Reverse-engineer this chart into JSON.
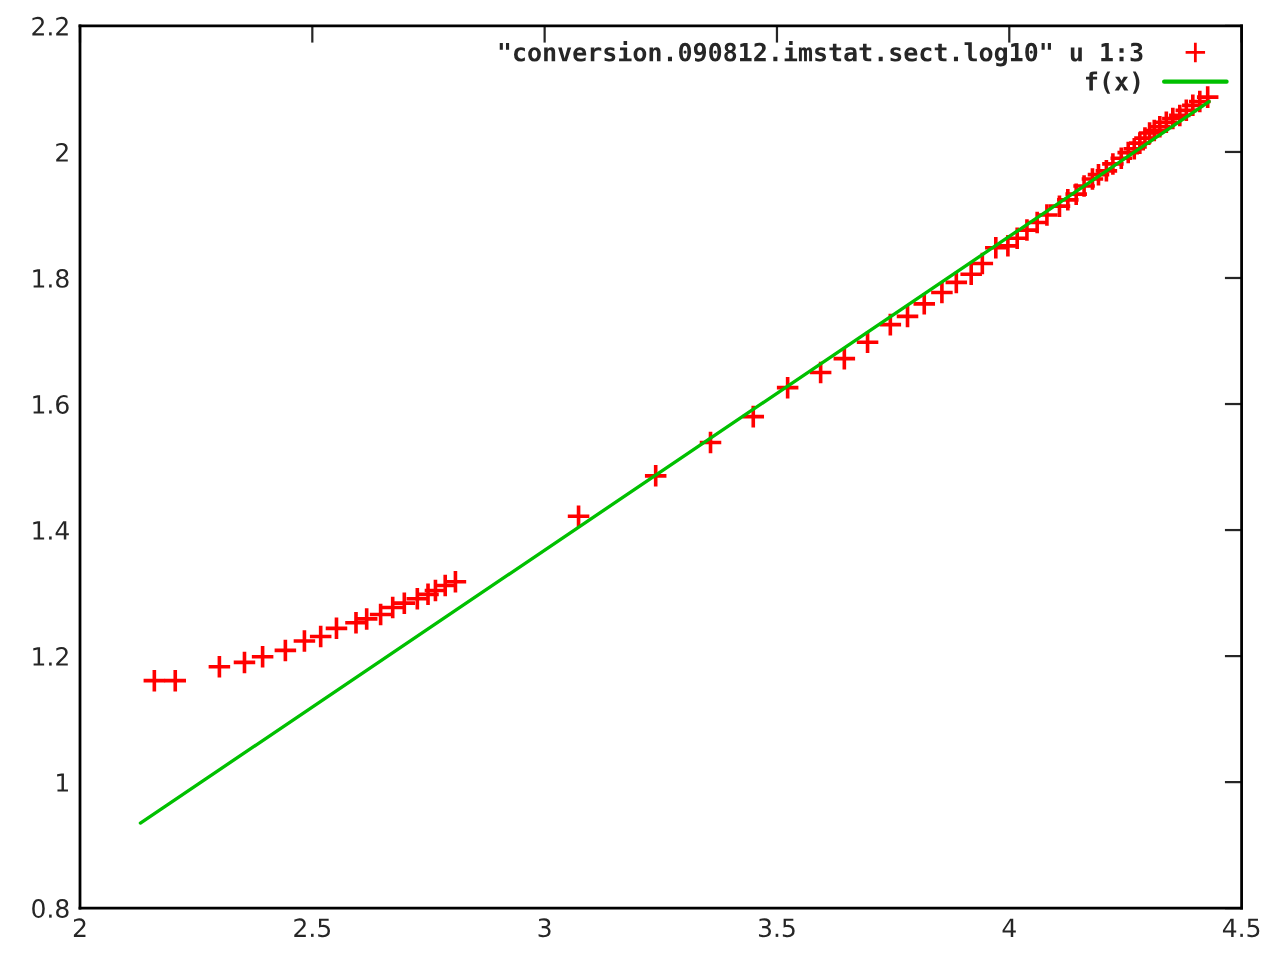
{
  "chart_data": {
    "type": "scatter",
    "xlim": [
      2,
      4.5
    ],
    "ylim": [
      0.8,
      2.2
    ],
    "xticks": [
      2,
      2.5,
      3,
      3.5,
      4,
      4.5
    ],
    "yticks": [
      0.8,
      1,
      1.2,
      1.4,
      1.6,
      1.8,
      2,
      2.2
    ],
    "grid": false,
    "legend": "top right",
    "series": [
      {
        "name": "\"conversion.090812.imstat.sect.log10\" u 1:3",
        "marker": "cross",
        "color": "#ff0000",
        "x": [
          2.16,
          2.205,
          2.3,
          2.354,
          2.393,
          2.442,
          2.483,
          2.518,
          2.552,
          2.594,
          2.617,
          2.647,
          2.673,
          2.698,
          2.726,
          2.749,
          2.765,
          2.786,
          2.808,
          3.073,
          3.239,
          3.357,
          3.449,
          3.523,
          3.594,
          3.645,
          3.695,
          3.744,
          3.781,
          3.817,
          3.855,
          3.886,
          3.918,
          3.942,
          3.971,
          3.997,
          4.017,
          4.038,
          4.06,
          4.081,
          4.108,
          4.126,
          4.144,
          4.161,
          4.179,
          4.192,
          4.209,
          4.223,
          4.241,
          4.256,
          4.269,
          4.281,
          4.292,
          4.302,
          4.312,
          4.324,
          4.338,
          4.352,
          4.367,
          4.381,
          4.395,
          4.41,
          4.427
        ],
        "values": [
          1.161,
          1.161,
          1.183,
          1.19,
          1.199,
          1.209,
          1.224,
          1.231,
          1.244,
          1.253,
          1.259,
          1.266,
          1.277,
          1.284,
          1.291,
          1.298,
          1.304,
          1.312,
          1.318,
          1.422,
          1.486,
          1.539,
          1.58,
          1.626,
          1.65,
          1.672,
          1.698,
          1.726,
          1.739,
          1.759,
          1.777,
          1.793,
          1.806,
          1.823,
          1.848,
          1.851,
          1.863,
          1.876,
          1.888,
          1.9,
          1.914,
          1.924,
          1.933,
          1.946,
          1.957,
          1.964,
          1.97,
          1.981,
          1.99,
          1.999,
          2.005,
          2.014,
          2.022,
          2.03,
          2.034,
          2.04,
          2.047,
          2.053,
          2.058,
          2.066,
          2.074,
          2.08,
          2.087
        ]
      },
      {
        "name": "f(x)",
        "type": "line",
        "marker": "none",
        "line_style": "solid",
        "color": "#00c000",
        "x": [
          2.13,
          4.43
        ],
        "values": [
          0.935,
          2.08
        ]
      }
    ]
  }
}
